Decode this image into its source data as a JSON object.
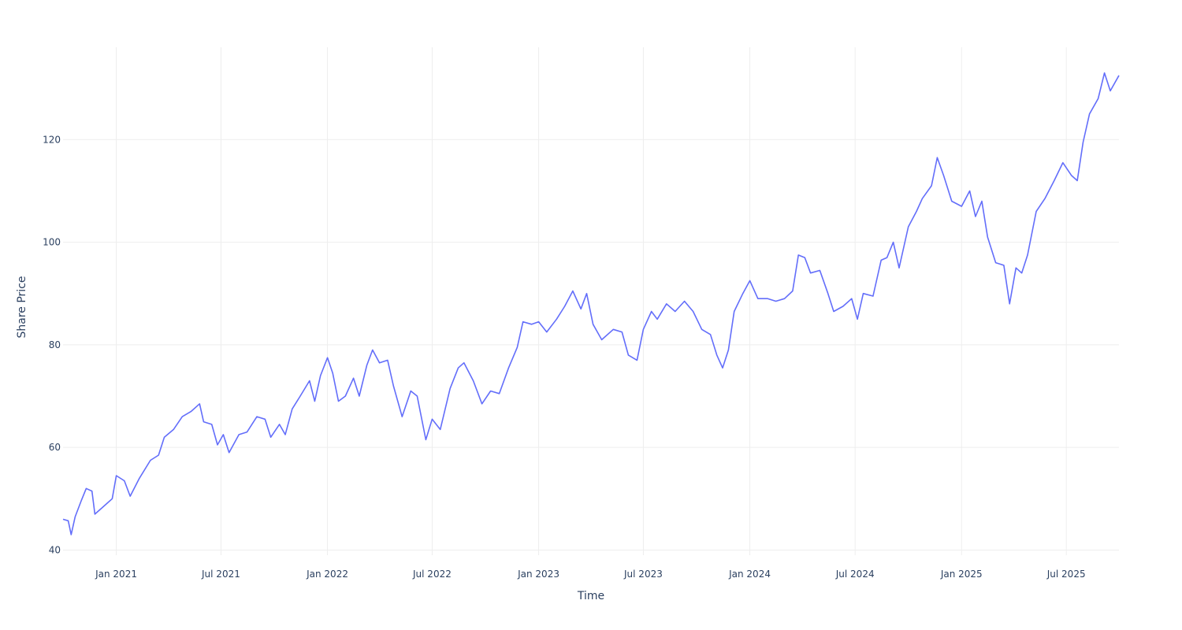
{
  "chart_data": {
    "type": "line",
    "title": "",
    "xlabel": "Time",
    "ylabel": "Share Price",
    "xlim": [
      "2020-10-01",
      "2025-09-30"
    ],
    "ylim": [
      39,
      138
    ],
    "y_ticks": [
      40,
      60,
      80,
      100,
      120
    ],
    "x_ticks": [
      {
        "date": "2021-01-01",
        "label": "Jan 2021"
      },
      {
        "date": "2021-07-01",
        "label": "Jul 2021"
      },
      {
        "date": "2022-01-01",
        "label": "Jan 2022"
      },
      {
        "date": "2022-07-01",
        "label": "Jul 2022"
      },
      {
        "date": "2023-01-01",
        "label": "Jan 2023"
      },
      {
        "date": "2023-07-01",
        "label": "Jul 2023"
      },
      {
        "date": "2024-01-01",
        "label": "Jan 2024"
      },
      {
        "date": "2024-07-01",
        "label": "Jul 2024"
      },
      {
        "date": "2025-01-01",
        "label": "Jan 2025"
      },
      {
        "date": "2025-07-01",
        "label": "Jul 2025"
      }
    ],
    "grid": true,
    "legend": "none",
    "series": [
      {
        "color": "#636efa",
        "points": [
          [
            "2020-10-01",
            46.0
          ],
          [
            "2020-10-10",
            45.7
          ],
          [
            "2020-10-15",
            43.0
          ],
          [
            "2020-10-22",
            46.5
          ],
          [
            "2020-11-01",
            49.5
          ],
          [
            "2020-11-10",
            52.0
          ],
          [
            "2020-11-20",
            51.5
          ],
          [
            "2020-11-25",
            47.0
          ],
          [
            "2020-12-10",
            48.5
          ],
          [
            "2020-12-25",
            50.0
          ],
          [
            "2021-01-01",
            54.5
          ],
          [
            "2021-01-15",
            53.5
          ],
          [
            "2021-01-25",
            50.5
          ],
          [
            "2021-02-10",
            54.0
          ],
          [
            "2021-03-01",
            57.5
          ],
          [
            "2021-03-15",
            58.5
          ],
          [
            "2021-03-25",
            62.0
          ],
          [
            "2021-04-10",
            63.5
          ],
          [
            "2021-04-25",
            66.0
          ],
          [
            "2021-05-10",
            67.0
          ],
          [
            "2021-05-25",
            68.5
          ],
          [
            "2021-06-01",
            65.0
          ],
          [
            "2021-06-15",
            64.5
          ],
          [
            "2021-06-25",
            60.5
          ],
          [
            "2021-07-05",
            62.5
          ],
          [
            "2021-07-15",
            59.0
          ],
          [
            "2021-08-01",
            62.5
          ],
          [
            "2021-08-15",
            63.0
          ],
          [
            "2021-09-01",
            66.0
          ],
          [
            "2021-09-15",
            65.5
          ],
          [
            "2021-09-25",
            62.0
          ],
          [
            "2021-10-10",
            64.5
          ],
          [
            "2021-10-20",
            62.5
          ],
          [
            "2021-11-01",
            67.5
          ],
          [
            "2021-11-15",
            70.0
          ],
          [
            "2021-12-01",
            73.0
          ],
          [
            "2021-12-10",
            69.0
          ],
          [
            "2021-12-20",
            74.0
          ],
          [
            "2022-01-01",
            77.5
          ],
          [
            "2022-01-10",
            74.5
          ],
          [
            "2022-01-20",
            69.0
          ],
          [
            "2022-02-01",
            70.0
          ],
          [
            "2022-02-15",
            73.5
          ],
          [
            "2022-02-25",
            70.0
          ],
          [
            "2022-03-10",
            76.0
          ],
          [
            "2022-03-20",
            79.0
          ],
          [
            "2022-04-01",
            76.5
          ],
          [
            "2022-04-15",
            77.0
          ],
          [
            "2022-04-25",
            72.0
          ],
          [
            "2022-05-10",
            66.0
          ],
          [
            "2022-05-25",
            71.0
          ],
          [
            "2022-06-05",
            70.0
          ],
          [
            "2022-06-20",
            61.5
          ],
          [
            "2022-07-01",
            65.5
          ],
          [
            "2022-07-15",
            63.5
          ],
          [
            "2022-08-01",
            71.5
          ],
          [
            "2022-08-15",
            75.5
          ],
          [
            "2022-08-25",
            76.5
          ],
          [
            "2022-09-10",
            73.0
          ],
          [
            "2022-09-25",
            68.5
          ],
          [
            "2022-10-10",
            71.0
          ],
          [
            "2022-10-25",
            70.5
          ],
          [
            "2022-11-10",
            75.5
          ],
          [
            "2022-11-25",
            79.5
          ],
          [
            "2022-12-05",
            84.5
          ],
          [
            "2022-12-20",
            84.0
          ],
          [
            "2023-01-01",
            84.5
          ],
          [
            "2023-01-15",
            82.5
          ],
          [
            "2023-02-01",
            85.0
          ],
          [
            "2023-02-15",
            87.5
          ],
          [
            "2023-03-01",
            90.5
          ],
          [
            "2023-03-15",
            87.0
          ],
          [
            "2023-03-25",
            90.0
          ],
          [
            "2023-04-05",
            84.0
          ],
          [
            "2023-04-20",
            81.0
          ],
          [
            "2023-05-10",
            83.0
          ],
          [
            "2023-05-25",
            82.5
          ],
          [
            "2023-06-05",
            78.0
          ],
          [
            "2023-06-20",
            77.0
          ],
          [
            "2023-07-01",
            83.0
          ],
          [
            "2023-07-15",
            86.5
          ],
          [
            "2023-07-25",
            85.0
          ],
          [
            "2023-08-10",
            88.0
          ],
          [
            "2023-08-25",
            86.5
          ],
          [
            "2023-09-10",
            88.5
          ],
          [
            "2023-09-25",
            86.5
          ],
          [
            "2023-10-10",
            83.0
          ],
          [
            "2023-10-25",
            82.0
          ],
          [
            "2023-11-05",
            78.0
          ],
          [
            "2023-11-15",
            75.5
          ],
          [
            "2023-11-25",
            79.0
          ],
          [
            "2023-12-05",
            86.5
          ],
          [
            "2023-12-20",
            90.0
          ],
          [
            "2024-01-01",
            92.5
          ],
          [
            "2024-01-15",
            89.0
          ],
          [
            "2024-02-01",
            89.0
          ],
          [
            "2024-02-15",
            88.5
          ],
          [
            "2024-03-01",
            89.0
          ],
          [
            "2024-03-15",
            90.5
          ],
          [
            "2024-03-25",
            97.5
          ],
          [
            "2024-04-05",
            97.0
          ],
          [
            "2024-04-15",
            94.0
          ],
          [
            "2024-05-01",
            94.5
          ],
          [
            "2024-05-15",
            90.0
          ],
          [
            "2024-05-25",
            86.5
          ],
          [
            "2024-06-10",
            87.5
          ],
          [
            "2024-06-25",
            89.0
          ],
          [
            "2024-07-05",
            85.0
          ],
          [
            "2024-07-15",
            90.0
          ],
          [
            "2024-08-01",
            89.5
          ],
          [
            "2024-08-15",
            96.5
          ],
          [
            "2024-08-25",
            97.0
          ],
          [
            "2024-09-05",
            100.0
          ],
          [
            "2024-09-15",
            95.0
          ],
          [
            "2024-10-01",
            103.0
          ],
          [
            "2024-10-15",
            106.0
          ],
          [
            "2024-10-25",
            108.5
          ],
          [
            "2024-11-10",
            111.0
          ],
          [
            "2024-11-20",
            116.5
          ],
          [
            "2024-12-01",
            113.0
          ],
          [
            "2024-12-15",
            108.0
          ],
          [
            "2025-01-01",
            107.0
          ],
          [
            "2025-01-15",
            110.0
          ],
          [
            "2025-01-25",
            105.0
          ],
          [
            "2025-02-05",
            108.0
          ],
          [
            "2025-02-15",
            101.0
          ],
          [
            "2025-03-01",
            96.0
          ],
          [
            "2025-03-15",
            95.5
          ],
          [
            "2025-03-25",
            88.0
          ],
          [
            "2025-04-05",
            95.0
          ],
          [
            "2025-04-15",
            94.0
          ],
          [
            "2025-04-25",
            97.5
          ],
          [
            "2025-05-10",
            106.0
          ],
          [
            "2025-05-25",
            108.5
          ],
          [
            "2025-06-10",
            112.0
          ],
          [
            "2025-06-25",
            115.5
          ],
          [
            "2025-07-10",
            113.0
          ],
          [
            "2025-07-20",
            112.0
          ],
          [
            "2025-07-30",
            119.5
          ],
          [
            "2025-08-10",
            125.0
          ],
          [
            "2025-08-25",
            128.0
          ],
          [
            "2025-09-05",
            133.0
          ],
          [
            "2025-09-15",
            129.5
          ],
          [
            "2025-09-30",
            132.5
          ]
        ]
      }
    ]
  }
}
